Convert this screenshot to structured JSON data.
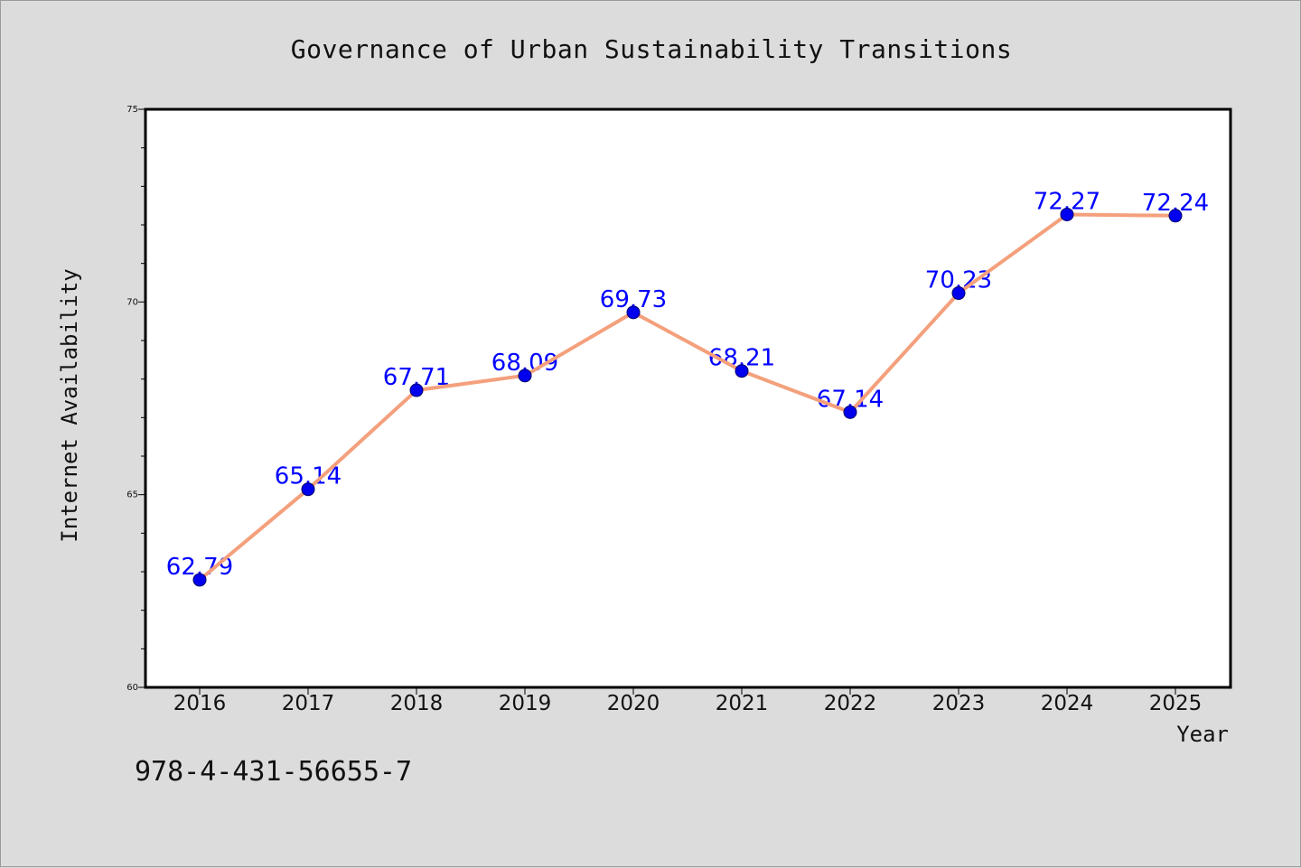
{
  "chart_data": {
    "type": "line",
    "title": "Governance of Urban Sustainability Transitions",
    "xlabel": "Year",
    "ylabel": "Internet Availability",
    "categories": [
      "2016",
      "2017",
      "2018",
      "2019",
      "2020",
      "2021",
      "2022",
      "2023",
      "2024",
      "2025"
    ],
    "values": [
      62.79,
      65.14,
      67.71,
      68.09,
      69.73,
      68.21,
      67.14,
      70.23,
      72.27,
      72.24
    ],
    "data_labels": [
      "62.79",
      "65.14",
      "67.71",
      "68.09",
      "69.73",
      "68.21",
      "67.14",
      "70.23",
      "72.27",
      "72.24"
    ],
    "ylim": [
      60,
      75
    ],
    "yticks": [
      "60",
      "65",
      "70",
      "75"
    ],
    "grid": false,
    "legend": "none",
    "line_color": "#f4a07c",
    "marker_color": "#0000ee",
    "label_color": "#0000ff"
  },
  "footer": {
    "isbn": "978-4-431-56655-7"
  },
  "colors": {
    "background": "#dcdcdc",
    "plot_area": "#ffffff"
  }
}
